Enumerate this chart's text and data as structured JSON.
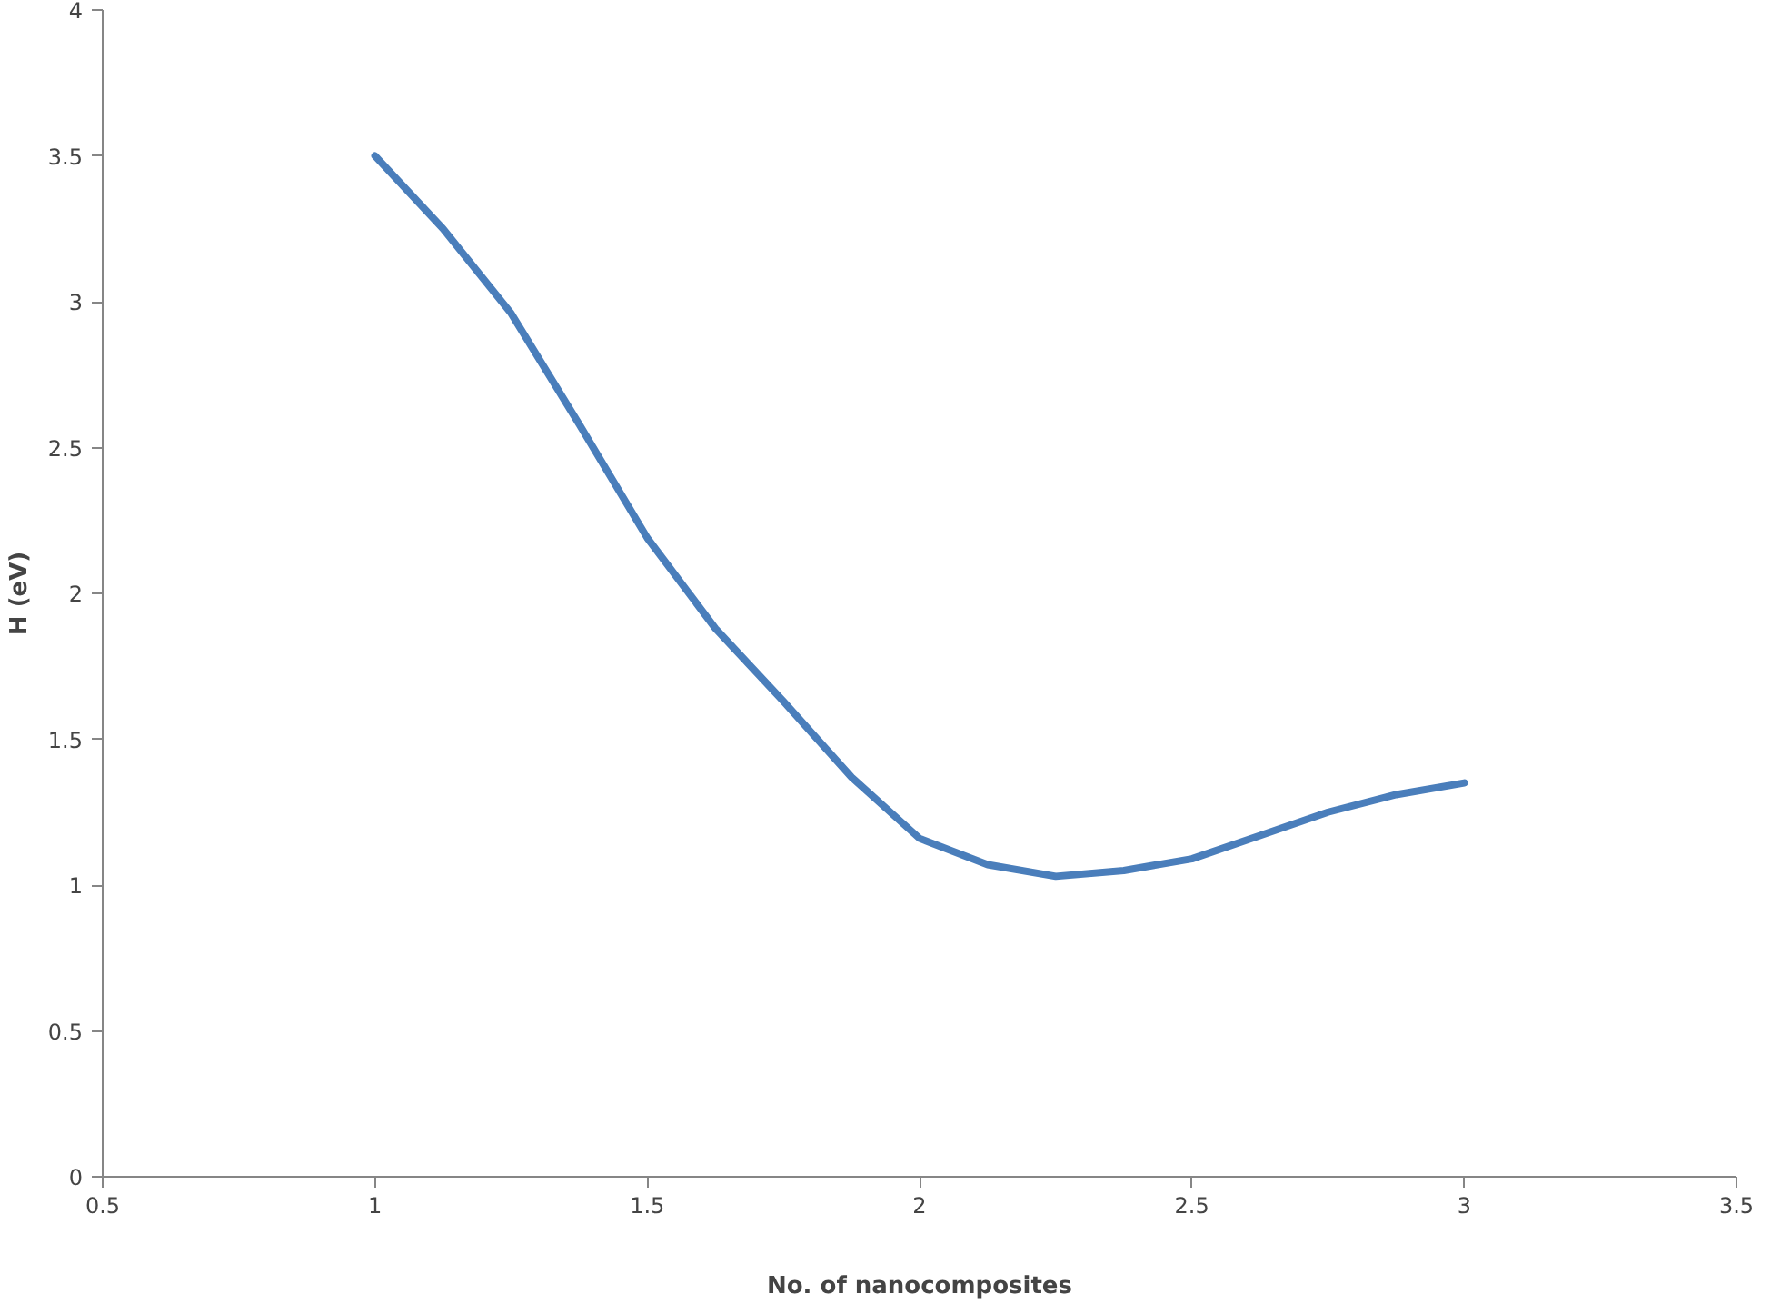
{
  "chart_data": {
    "type": "line",
    "xlabel": "No. of nanocomposites",
    "ylabel": "H (eV)",
    "x": [
      1,
      1.125,
      1.25,
      1.375,
      1.5,
      1.625,
      1.75,
      1.875,
      2,
      2.125,
      2.25,
      2.375,
      2.5,
      2.625,
      2.75,
      2.875,
      3
    ],
    "series": [
      {
        "color": "#4a7ebb",
        "values": [
          3.5,
          3.25,
          2.96,
          2.58,
          2.19,
          1.88,
          1.63,
          1.37,
          1.16,
          1.07,
          1.03,
          1.05,
          1.09,
          1.17,
          1.25,
          1.31,
          1.35
        ]
      }
    ],
    "xlim": [
      0.5,
      3.5
    ],
    "ylim": [
      0,
      4
    ],
    "xticks": [
      0.5,
      1,
      1.5,
      2,
      2.5,
      3,
      3.5
    ],
    "yticks": [
      0,
      0.5,
      1,
      1.5,
      2,
      2.5,
      3,
      3.5,
      4
    ],
    "grid": false,
    "marker": "none",
    "line_style": "solid"
  }
}
